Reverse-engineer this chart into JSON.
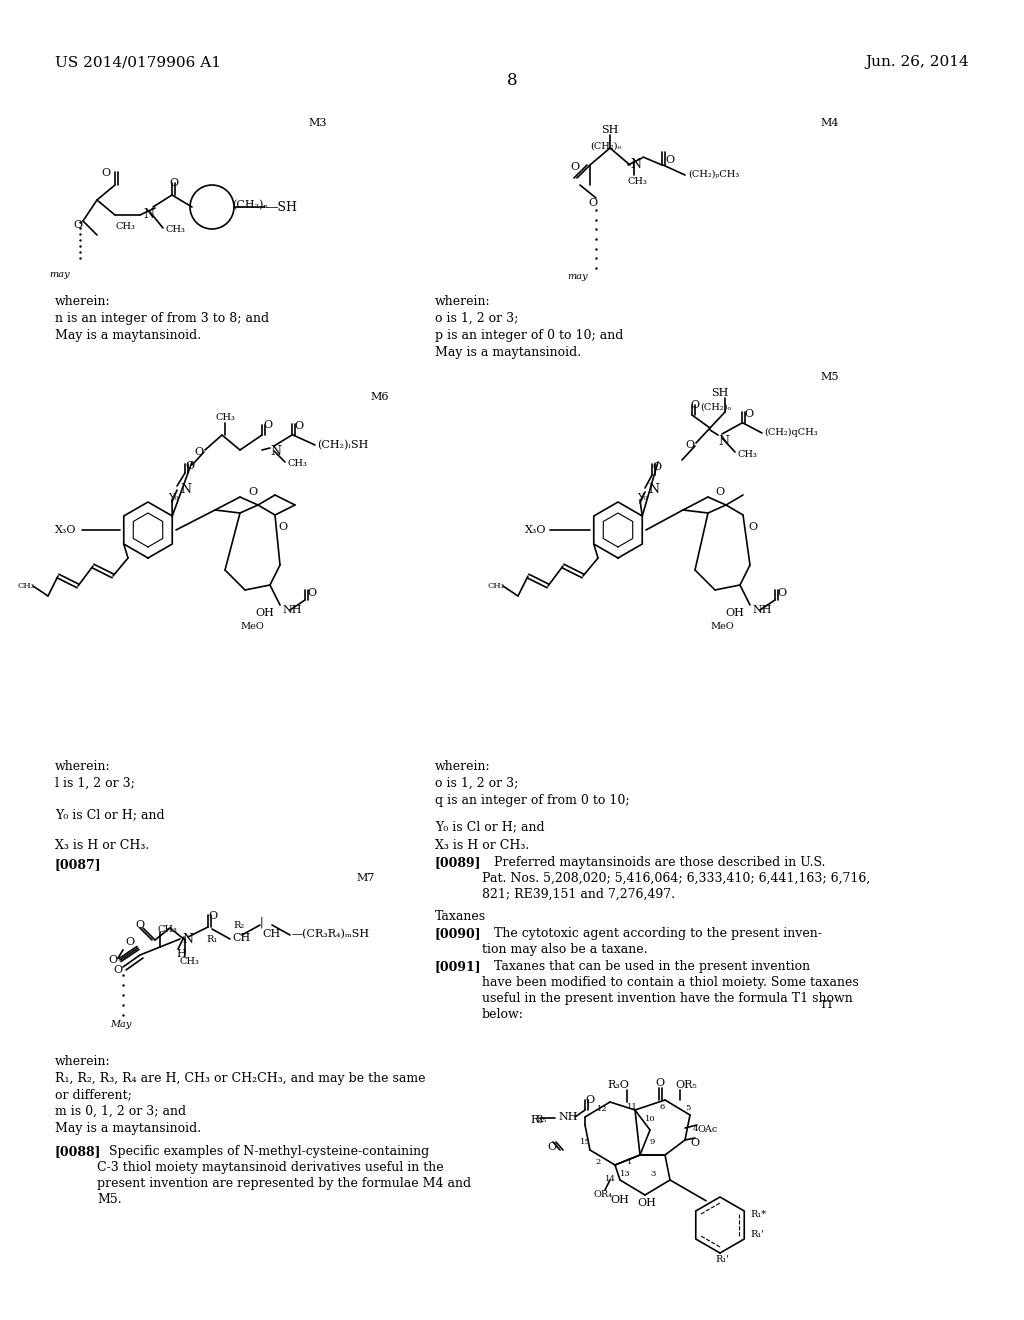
{
  "background_color": "#ffffff",
  "page_number": "8",
  "header_left": "US 2014/0179906 A1",
  "header_right": "Jun. 26, 2014",
  "text_color": "#000000",
  "font_size_header": 11,
  "font_size_body": 9,
  "font_size_label": 8
}
